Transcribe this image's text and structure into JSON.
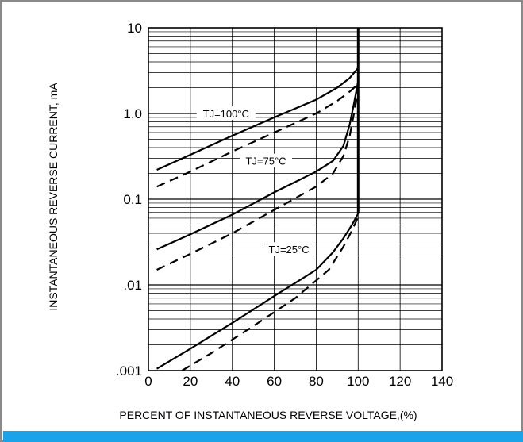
{
  "accent_color": "#1aa3e8",
  "chart_data": {
    "type": "line",
    "title": "",
    "xlabel": "PERCENT OF INSTANTANEOUS REVERSE VOLTAGE,(%)",
    "ylabel": "INSTANTANEOUS REVERSE CURRENT, mA",
    "y_scale": "log",
    "xlim": [
      0,
      140
    ],
    "ylim": [
      0.001,
      10
    ],
    "x_ticks": [
      {
        "value": 0,
        "label": "0"
      },
      {
        "value": 20,
        "label": "20"
      },
      {
        "value": 40,
        "label": "40"
      },
      {
        "value": 60,
        "label": "60"
      },
      {
        "value": 80,
        "label": "80"
      },
      {
        "value": 100,
        "label": "100"
      },
      {
        "value": 120,
        "label": "120"
      },
      {
        "value": 140,
        "label": "140"
      }
    ],
    "y_ticks": [
      {
        "value": 10,
        "label": "10"
      },
      {
        "value": 1,
        "label": "1.0"
      },
      {
        "value": 0.1,
        "label": "0.1"
      },
      {
        "value": 0.01,
        "label": ".01"
      },
      {
        "value": 0.001,
        "label": ".001"
      }
    ],
    "grid": true,
    "annotations": [
      {
        "text": "TJ=100°C",
        "x": 37,
        "y": 1.0
      },
      {
        "text": "TJ=75°C",
        "x": 56,
        "y": 0.28
      },
      {
        "text": "TJ=25°C",
        "x": 67,
        "y": 0.026
      }
    ],
    "series": [
      {
        "group": "TJ=100°C",
        "style": "solid",
        "x": [
          4,
          20,
          40,
          60,
          80,
          90,
          96,
          100
        ],
        "y": [
          0.22,
          0.33,
          0.55,
          0.9,
          1.45,
          2.0,
          2.6,
          3.4
        ]
      },
      {
        "group": "TJ=100°C",
        "style": "dashed",
        "x": [
          4,
          20,
          40,
          60,
          80,
          90,
          96,
          100
        ],
        "y": [
          0.14,
          0.21,
          0.36,
          0.6,
          1.0,
          1.4,
          1.8,
          2.2
        ]
      },
      {
        "group": "TJ=75°C",
        "style": "solid",
        "x": [
          4,
          20,
          40,
          60,
          80,
          88,
          93,
          96,
          98,
          100
        ],
        "y": [
          0.026,
          0.039,
          0.066,
          0.12,
          0.21,
          0.28,
          0.42,
          0.75,
          1.3,
          2.4
        ]
      },
      {
        "group": "TJ=75°C",
        "style": "dashed",
        "x": [
          4,
          20,
          40,
          60,
          80,
          88,
          93,
          96,
          98,
          100
        ],
        "y": [
          0.015,
          0.023,
          0.04,
          0.075,
          0.14,
          0.2,
          0.32,
          0.55,
          1.0,
          1.9
        ]
      },
      {
        "group": "TJ=25°C",
        "style": "solid",
        "x": [
          4,
          20,
          40,
          60,
          80,
          88,
          93,
          97,
          100
        ],
        "y": [
          0.00105,
          0.0018,
          0.0036,
          0.0074,
          0.015,
          0.024,
          0.035,
          0.05,
          0.068
        ]
      },
      {
        "group": "TJ=25°C",
        "style": "dashed",
        "x": [
          16,
          30,
          50,
          70,
          86,
          93,
          97,
          100
        ],
        "y": [
          0.001,
          0.0016,
          0.0033,
          0.007,
          0.015,
          0.028,
          0.043,
          0.062
        ]
      },
      {
        "group": "breakdown",
        "style": "solid",
        "x": [
          100,
          100
        ],
        "y": [
          0.068,
          10
        ]
      }
    ]
  }
}
